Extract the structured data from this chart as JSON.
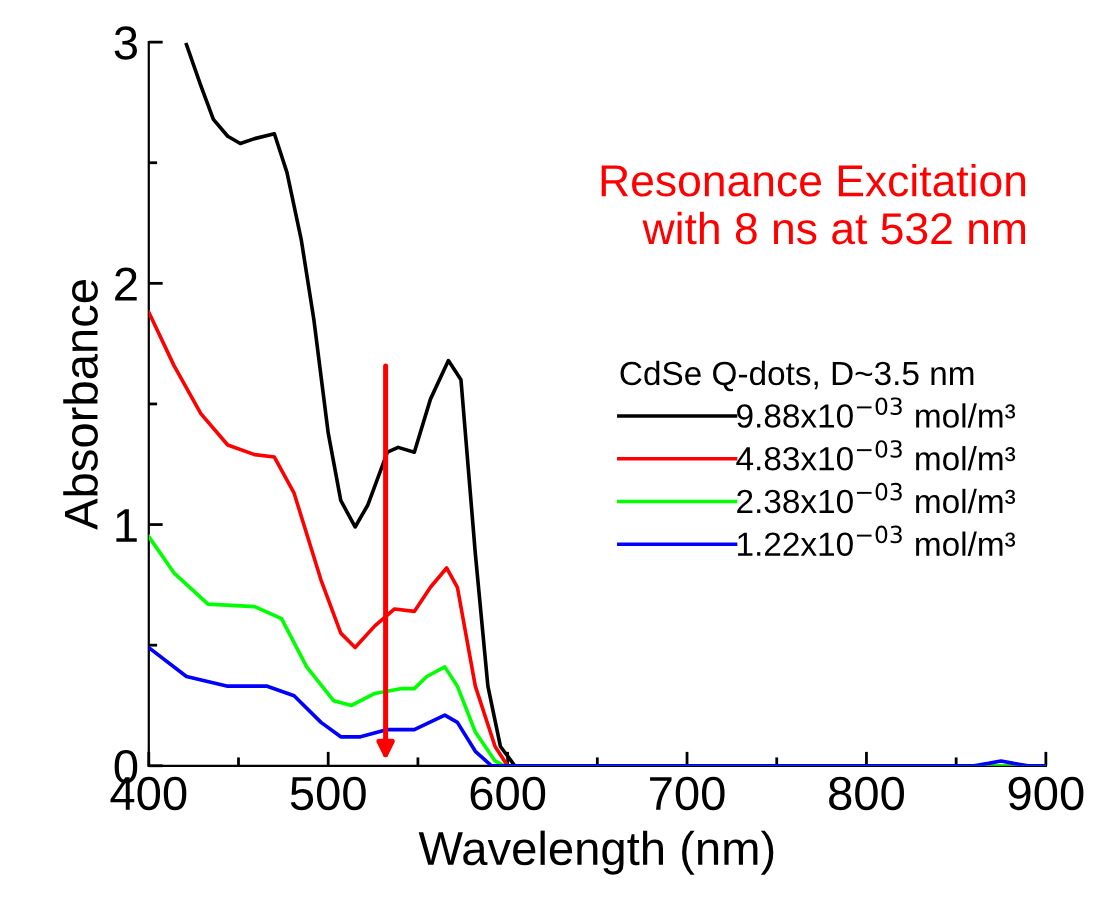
{
  "chart_data": {
    "type": "line",
    "xlabel": "Wavelength (nm)",
    "ylabel": "Absorbance",
    "legend_title": "CdSe Q-dots, D~3.5 nm",
    "legend": "right",
    "xlim": [
      400,
      900
    ],
    "ylim": [
      0,
      3
    ],
    "xticks": [
      400,
      {
        "value": 450,
        "label": null
      },
      500,
      {
        "value": 550,
        "label": null
      },
      600,
      {
        "value": 650,
        "label": null
      },
      700,
      {
        "value": 750,
        "label": null
      },
      800,
      {
        "value": 850,
        "label": null
      },
      900
    ],
    "yticks": [
      0,
      {
        "value": 0.5,
        "label": null
      },
      1,
      {
        "value": 1.5,
        "label": null
      },
      2,
      {
        "value": 2.5,
        "label": null
      },
      3
    ],
    "grid": false,
    "marker": "none",
    "line_style": "solid",
    "annotations": [
      "Resonance Excitation\nwith 8 ns at 532 nm"
    ],
    "series": [
      {
        "name": "9.88x10$^{−03}$ mol/m³",
        "color": "#000000",
        "x": [
          421,
          429,
          436,
          444,
          451,
          459,
          470,
          477,
          485,
          492,
          500,
          507,
          515,
          522,
          533,
          539,
          548,
          557,
          567,
          574,
          582,
          589,
          596,
          604,
          620,
          900
        ],
        "values": [
          2.99,
          2.82,
          2.68,
          2.61,
          2.58,
          2.6,
          2.62,
          2.46,
          2.18,
          1.85,
          1.38,
          1.1,
          0.99,
          1.08,
          1.3,
          1.32,
          1.3,
          1.52,
          1.68,
          1.6,
          0.88,
          0.33,
          0.08,
          0,
          0,
          0
        ]
      },
      {
        "name": "4.83x10$^{−03}$ mol/m³",
        "color": "#ff0000",
        "x": [
          400,
          414,
          429,
          444,
          459,
          470,
          481,
          496,
          507,
          515,
          526,
          537,
          548,
          557,
          566,
          572,
          582,
          593,
          600,
          620,
          900
        ],
        "values": [
          1.88,
          1.66,
          1.46,
          1.33,
          1.29,
          1.28,
          1.13,
          0.77,
          0.55,
          0.49,
          0.58,
          0.65,
          0.64,
          0.74,
          0.82,
          0.74,
          0.33,
          0.08,
          0,
          0,
          0
        ]
      },
      {
        "name": "2.38x10$^{−03}$ mol/m³",
        "color": "#00ff00",
        "x": [
          400,
          414,
          433,
          459,
          474,
          488,
          503,
          513,
          526,
          541,
          548,
          555,
          565,
          572,
          582,
          593,
          598,
          620,
          900
        ],
        "values": [
          0.95,
          0.8,
          0.67,
          0.66,
          0.61,
          0.41,
          0.27,
          0.25,
          0.3,
          0.32,
          0.32,
          0.37,
          0.41,
          0.33,
          0.14,
          0.02,
          0,
          0,
          0
        ]
      },
      {
        "name": "1.22x10$^{−03}$ mol/m³",
        "color": "#0000ff",
        "x": [
          400,
          421,
          444,
          466,
          481,
          496,
          507,
          518,
          533,
          548,
          565,
          572,
          582,
          591,
          620,
          860,
          868,
          875,
          882,
          890,
          900
        ],
        "values": [
          0.49,
          0.37,
          0.33,
          0.33,
          0.29,
          0.18,
          0.12,
          0.12,
          0.15,
          0.15,
          0.21,
          0.18,
          0.06,
          0,
          0,
          0,
          0.01,
          0.02,
          0.01,
          0,
          0
        ]
      }
    ]
  }
}
